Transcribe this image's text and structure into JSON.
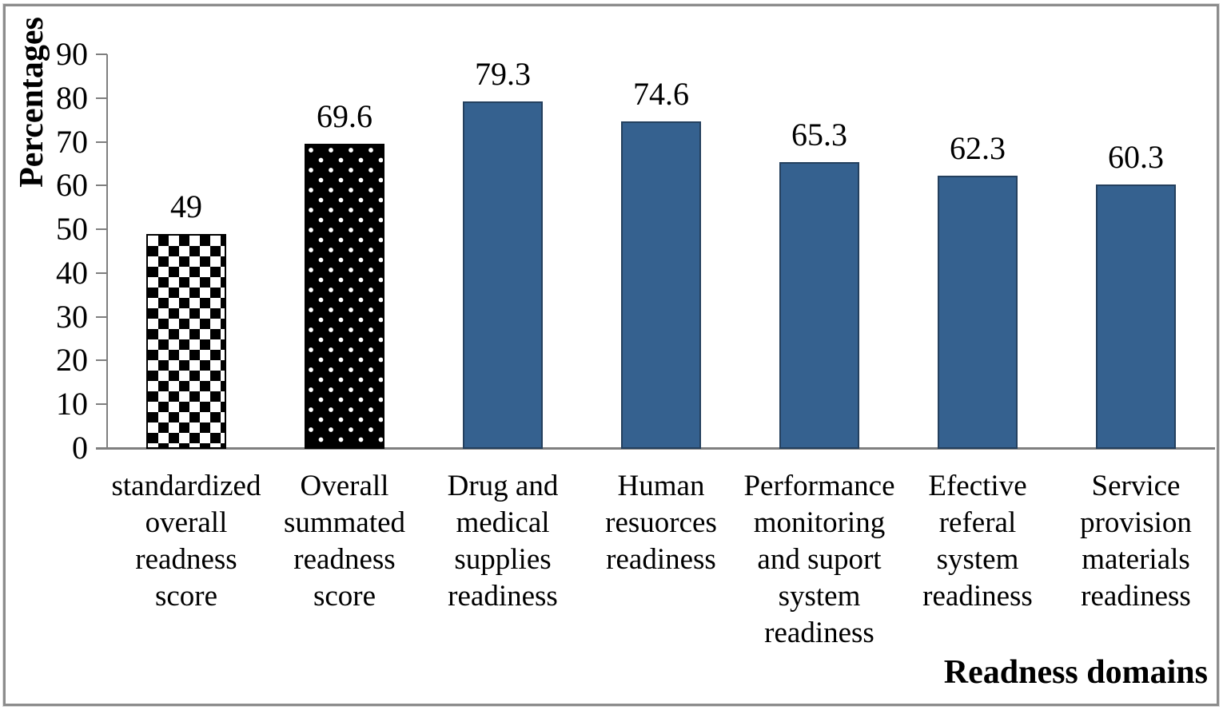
{
  "chart_data": {
    "type": "bar",
    "title": "",
    "xlabel": "Readness domains",
    "ylabel": "Percentages",
    "ylim": [
      0,
      90
    ],
    "ytick_interval": 10,
    "yticks": [
      0,
      10,
      20,
      30,
      40,
      50,
      60,
      70,
      80,
      90
    ],
    "grid": false,
    "legend": "none",
    "categories": [
      "standardized overall readness score",
      "Overall summated readness score",
      "Drug and medical supplies readiness",
      "Human resuorces readiness",
      "Performance monitoring and suport system readiness",
      "Efective referal system readiness",
      "Service provision materials readiness"
    ],
    "values": [
      49,
      69.6,
      79.3,
      74.6,
      65.3,
      62.3,
      60.3
    ],
    "value_labels": [
      "49",
      "69.6",
      "79.3",
      "74.6",
      "65.3",
      "62.3",
      "60.3"
    ],
    "bar_styles": [
      "checkerboard",
      "dots",
      "solid",
      "solid",
      "solid",
      "solid",
      "solid"
    ],
    "colors": {
      "solid_bar_fill": "#35618f",
      "solid_bar_border": "#24405e",
      "pattern_color": "#000000",
      "pattern_background": "#ffffff",
      "axis_line": "#7f7f7f",
      "frame_border": "#8c8c8c",
      "text": "#000000"
    }
  }
}
